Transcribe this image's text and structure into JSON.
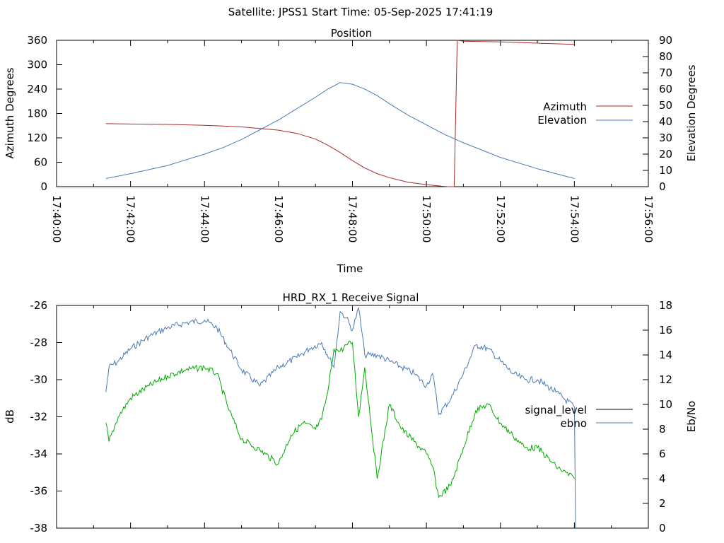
{
  "suptitle": "Satellite: JPSS1    Start Time: 05-Sep-2025 17:41:19",
  "colors": {
    "azimuth": "#a52a2a",
    "elevation": "#4a7ab5",
    "ebno": "#4a7ab5",
    "signal": "#00aa00",
    "axis": "#000000"
  },
  "chart_data": [
    {
      "type": "line",
      "title": "Position",
      "xlabel": "Time",
      "ylabel": "Azimuth Degrees",
      "y2label": "Elevation Degrees",
      "xlim": [
        "17:40:00",
        "17:56:00"
      ],
      "xticks": [
        "17:40:00",
        "17:42:00",
        "17:44:00",
        "17:46:00",
        "17:48:00",
        "17:50:00",
        "17:52:00",
        "17:54:00",
        "17:56:00"
      ],
      "ylim": [
        0,
        360
      ],
      "yticks": [
        "0",
        "60",
        "120",
        "180",
        "240",
        "300",
        "360"
      ],
      "y2lim": [
        0,
        90
      ],
      "y2ticks": [
        "0",
        "10",
        "20",
        "30",
        "40",
        "50",
        "60",
        "70",
        "80",
        "90"
      ],
      "legend_position": "right",
      "grid": false,
      "series": [
        {
          "name": "Azimuth",
          "axis": "y",
          "x": [
            "17:41:20",
            "17:42:00",
            "17:43:00",
            "17:44:00",
            "17:44:30",
            "17:45:00",
            "17:45:30",
            "17:46:00",
            "17:46:30",
            "17:47:00",
            "17:47:20",
            "17:47:40",
            "17:48:00",
            "17:48:20",
            "17:48:40",
            "17:49:00",
            "17:49:30",
            "17:50:00",
            "17:50:25",
            "17:50:35",
            "17:50:45",
            "17:50:50",
            "17:51:00",
            "17:52:00",
            "17:53:00",
            "17:54:00"
          ],
          "values": [
            155,
            154,
            153,
            151,
            149,
            147,
            143,
            139,
            131,
            117,
            102,
            84,
            64,
            46,
            32,
            22,
            11,
            5,
            1,
            0,
            0,
            360,
            358,
            356,
            353,
            350
          ]
        },
        {
          "name": "Elevation",
          "axis": "y2",
          "x": [
            "17:41:20",
            "17:42:00",
            "17:43:00",
            "17:44:00",
            "17:44:30",
            "17:45:00",
            "17:45:30",
            "17:46:00",
            "17:46:30",
            "17:47:00",
            "17:47:20",
            "17:47:40",
            "17:48:00",
            "17:48:20",
            "17:48:40",
            "17:49:00",
            "17:49:30",
            "17:50:00",
            "17:50:30",
            "17:51:00",
            "17:52:00",
            "17:53:00",
            "17:54:00"
          ],
          "values": [
            5,
            8,
            13,
            20,
            24,
            29,
            35,
            41,
            48,
            55,
            60,
            64,
            63,
            60,
            56,
            51,
            44,
            38,
            32,
            27,
            18,
            11,
            5
          ]
        }
      ]
    },
    {
      "type": "line",
      "title": "HRD_RX_1 Receive Signal",
      "xlabel": "",
      "ylabel": "dB",
      "y2label": "Eb/No",
      "xlim": [
        "17:40:00",
        "17:56:00"
      ],
      "ylim": [
        -38,
        -26
      ],
      "yticks": [
        "-38",
        "-36",
        "-34",
        "-32",
        "-30",
        "-28",
        "-26"
      ],
      "y2lim": [
        0,
        18
      ],
      "y2ticks": [
        "0",
        "2",
        "4",
        "6",
        "8",
        "10",
        "12",
        "14",
        "16",
        "18"
      ],
      "legend_position": "right",
      "grid": false,
      "series": [
        {
          "name": "signal_level",
          "axis": "y",
          "x": [],
          "values": []
        },
        {
          "name": "ebno",
          "axis": "y2",
          "x": [
            "17:41:20",
            "17:41:25",
            "17:41:40",
            "17:42:00",
            "17:42:30",
            "17:43:00",
            "17:43:30",
            "17:44:00",
            "17:44:20",
            "17:44:40",
            "17:45:00",
            "17:45:30",
            "17:46:00",
            "17:46:30",
            "17:46:50",
            "17:47:10",
            "17:47:30",
            "17:47:40",
            "17:47:50",
            "17:48:00",
            "17:48:10",
            "17:48:20",
            "17:48:40",
            "17:49:00",
            "17:49:20",
            "17:49:40",
            "17:50:00",
            "17:50:10",
            "17:50:20",
            "17:50:40",
            "17:51:00",
            "17:51:20",
            "17:51:40",
            "17:52:00",
            "17:52:20",
            "17:52:40",
            "17:53:00",
            "17:53:30",
            "17:54:00",
            "17:54:02"
          ],
          "values": [
            11,
            13,
            13.5,
            14.5,
            15.5,
            16.2,
            16.6,
            16.8,
            16.2,
            14.5,
            12.8,
            11.5,
            13,
            13.8,
            14.5,
            15,
            13,
            17.5,
            17,
            16,
            17.8,
            14,
            14,
            13.5,
            13,
            12.5,
            11.5,
            12.5,
            9.2,
            10.5,
            12.5,
            14.8,
            14.5,
            13.5,
            12.5,
            12,
            12,
            11,
            9.8,
            0
          ]
        },
        {
          "name": "",
          "axis": "y2",
          "x": [
            "17:41:20",
            "17:41:25",
            "17:41:40",
            "17:42:00",
            "17:42:30",
            "17:43:00",
            "17:43:30",
            "17:44:00",
            "17:44:20",
            "17:44:40",
            "17:45:00",
            "17:45:30",
            "17:46:00",
            "17:46:20",
            "17:46:40",
            "17:47:00",
            "17:47:10",
            "17:47:20",
            "17:47:30",
            "17:47:40",
            "17:47:50",
            "17:48:00",
            "17:48:10",
            "17:48:20",
            "17:48:40",
            "17:49:00",
            "17:49:20",
            "17:49:40",
            "17:50:00",
            "17:50:10",
            "17:50:20",
            "17:50:40",
            "17:51:00",
            "17:51:20",
            "17:51:40",
            "17:52:00",
            "17:52:20",
            "17:52:40",
            "17:53:00",
            "17:53:30",
            "17:54:00"
          ],
          "values": [
            8.5,
            7,
            9,
            10.5,
            11.5,
            12.3,
            12.8,
            13,
            12.5,
            9.5,
            7.2,
            6.3,
            5.2,
            7.5,
            8.5,
            8,
            8.8,
            11,
            14.5,
            14.3,
            14.8,
            15,
            9,
            13,
            4,
            10,
            8,
            7,
            6,
            5,
            2.5,
            3.5,
            6.5,
            9.5,
            10,
            8.5,
            7.5,
            6.5,
            6.5,
            5,
            4
          ]
        }
      ]
    }
  ]
}
